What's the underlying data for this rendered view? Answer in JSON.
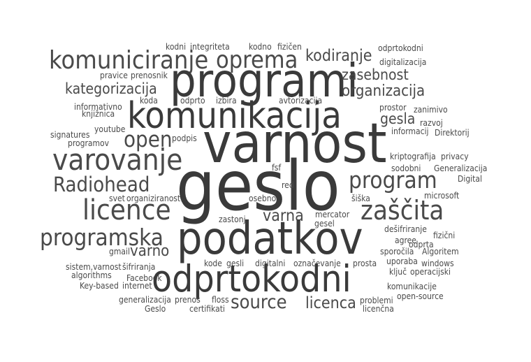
{
  "cloud": {
    "words": [
      "kodni",
      "integriteta",
      "kodno",
      "fizičen",
      "odprtokodni",
      "komuniciranje",
      "oprema",
      "kodiranje",
      "digitalizacija",
      "programi",
      "pravice",
      "prenosnik",
      "zasebnost",
      "kategorizacija",
      "organizacija",
      "informativno",
      "koda",
      "odprto",
      "izbira",
      "avtorizacija",
      "prostor",
      "zanimivo",
      "knjižnica",
      "komunikacija",
      "gesla",
      "razvoj",
      "signatures",
      "youtube",
      "informacij",
      "Direktorij",
      "open",
      "programov",
      "podpis",
      "varnost",
      "varovanje",
      "kriptografija",
      "privacy",
      "sodobni",
      "Generalizacija",
      "fsf",
      "program",
      "Digital",
      "Radiohead",
      "geslo",
      "red",
      "svet",
      "organiziranost",
      "osebno",
      "šiška",
      "microsoft",
      "licence",
      "zaščita",
      "mercator",
      "varna",
      "zastonj",
      "gesel",
      "dešifriranje",
      "fizični",
      "programska",
      "agree",
      "odprta",
      "gmail",
      "podatkov",
      "varno",
      "sporočila",
      "Algoritem",
      "sistem,varnost",
      "šifriranja",
      "kode",
      "gesli",
      "digitalni",
      "označevanje",
      "prosta",
      "uporaba",
      "windows",
      "ključ",
      "operacijski",
      "Facebook",
      "algorithms",
      "Key-based",
      "internet",
      "odprtokodni",
      "komunikacije",
      "generalizacija",
      "prenos",
      "floss",
      "problemi",
      "open-source",
      "source",
      "licenca",
      "Geslo",
      "certifikati",
      "licenčna"
    ]
  }
}
